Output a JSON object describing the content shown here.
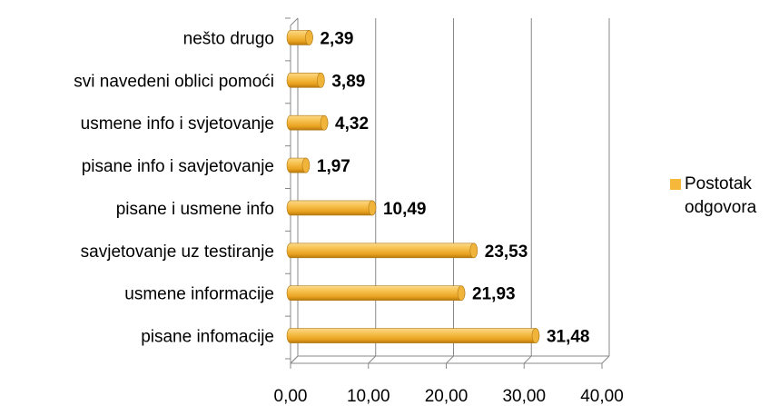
{
  "chart_data": {
    "type": "bar",
    "orientation": "horizontal",
    "categories": [
      "pisane infomacije",
      "usmene informacije",
      "savjetovanje uz testiranje",
      "pisane i usmene info",
      "pisane info i savjetovanje",
      "usmene info i svjetovanje",
      "svi navedeni oblici pomoći",
      "nešto drugo"
    ],
    "series": [
      {
        "name": "Postotak odgovora",
        "color": "#f5b83a",
        "values": [
          31.48,
          21.93,
          23.53,
          10.49,
          1.97,
          4.32,
          3.89,
          2.39
        ],
        "value_labels": [
          "31,48",
          "21,93",
          "23,53",
          "10,49",
          "1,97",
          "4,32",
          "3,89",
          "2,39"
        ]
      }
    ],
    "xlim": [
      0,
      40
    ],
    "xticks": [
      {
        "value": 0,
        "label": "0,00"
      },
      {
        "value": 10,
        "label": "10,00"
      },
      {
        "value": 20,
        "label": "20,00"
      },
      {
        "value": 30,
        "label": "30,00"
      },
      {
        "value": 40,
        "label": "40,00"
      }
    ],
    "grid": true,
    "legend": "right"
  }
}
